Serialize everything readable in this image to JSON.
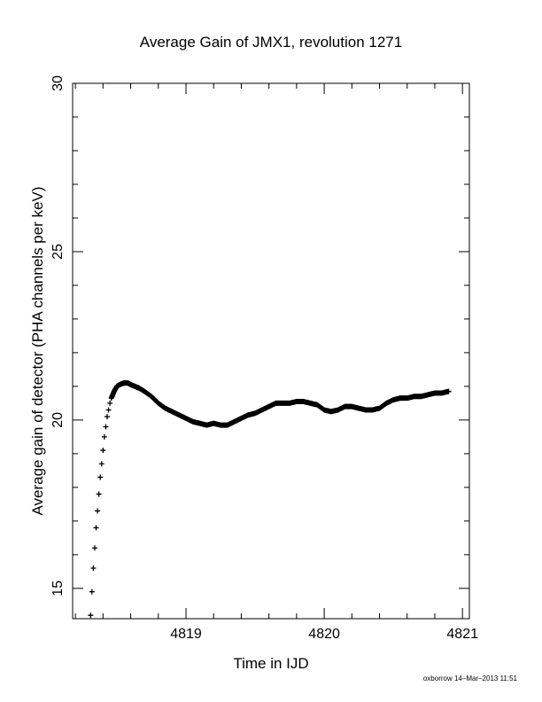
{
  "chart_data": {
    "type": "scatter",
    "title": "Average Gain of JMX1, revolution 1271",
    "xlabel": "Time in IJD",
    "ylabel": "Average gain of detector (PHA channels per keV)",
    "xlim": [
      4818.18,
      4821.05
    ],
    "ylim": [
      14.1,
      30
    ],
    "x_ticks": [
      4819,
      4820,
      4821
    ],
    "x_tick_labels": [
      "4819",
      "4820",
      "4821"
    ],
    "y_ticks": [
      15,
      20,
      25,
      30
    ],
    "y_tick_labels": [
      "15",
      "20",
      "25",
      "30"
    ],
    "grid": false,
    "marker": "+",
    "series_color": "#000000",
    "footer": "oxborrow 14–Mar–2013 11:51",
    "series": [
      {
        "x": [
          4818.31,
          4818.32,
          4818.33,
          4818.34,
          4818.35,
          4818.36,
          4818.37,
          4818.38,
          4818.39,
          4818.4,
          4818.41,
          4818.42,
          4818.43,
          4818.44,
          4818.45,
          4818.46,
          4818.48,
          4818.5,
          4818.52,
          4818.55,
          4818.58,
          4818.6,
          4818.63,
          4818.66,
          4818.7,
          4818.75,
          4818.8,
          4818.85,
          4818.9,
          4818.95,
          4819.0,
          4819.05,
          4819.1,
          4819.15,
          4819.2,
          4819.25,
          4819.3,
          4819.35,
          4819.4,
          4819.45,
          4819.5,
          4819.55,
          4819.6,
          4819.65,
          4819.7,
          4819.75,
          4819.8,
          4819.85,
          4819.9,
          4819.95,
          4820.0,
          4820.05,
          4820.1,
          4820.15,
          4820.2,
          4820.25,
          4820.3,
          4820.35,
          4820.4,
          4820.45,
          4820.5,
          4820.55,
          4820.6,
          4820.65,
          4820.7,
          4820.75,
          4820.8,
          4820.85,
          4820.9
        ],
        "y": [
          14.2,
          14.9,
          15.6,
          16.2,
          16.8,
          17.3,
          17.8,
          18.3,
          18.7,
          19.1,
          19.5,
          19.8,
          20.1,
          20.3,
          20.5,
          20.65,
          20.85,
          21.0,
          21.05,
          21.1,
          21.1,
          21.05,
          21.0,
          20.95,
          20.85,
          20.7,
          20.5,
          20.35,
          20.25,
          20.15,
          20.05,
          19.95,
          19.9,
          19.85,
          19.9,
          19.85,
          19.85,
          19.95,
          20.05,
          20.15,
          20.2,
          20.3,
          20.4,
          20.5,
          20.5,
          20.5,
          20.55,
          20.55,
          20.5,
          20.45,
          20.3,
          20.25,
          20.3,
          20.4,
          20.4,
          20.35,
          20.3,
          20.3,
          20.35,
          20.5,
          20.6,
          20.65,
          20.65,
          20.7,
          20.7,
          20.75,
          20.8,
          20.8,
          20.85
        ]
      }
    ]
  }
}
